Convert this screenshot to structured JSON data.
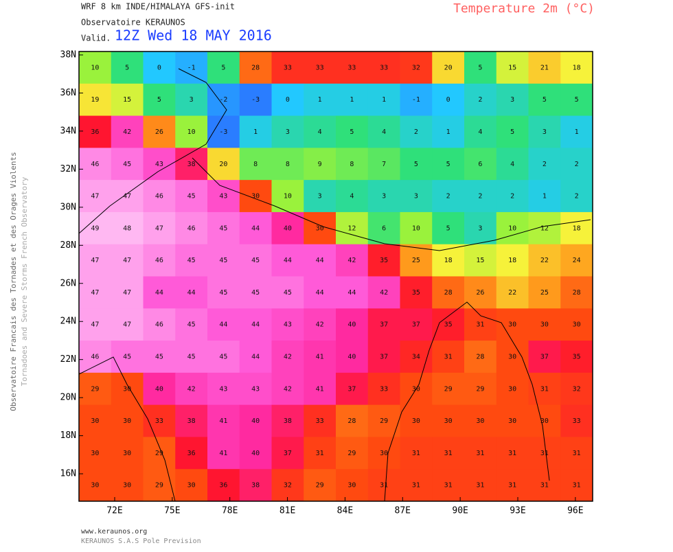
{
  "chart_data": {
    "type": "heatmap",
    "header": {
      "line1": "WRF 8 km INDE/HIMALAYA   GFS-init",
      "line2": "Observatoire KERAUNOS",
      "valid_label": "Valid.",
      "valid_time": "12Z Wed 18 MAY 2016"
    },
    "title": "Temperature 2m (°C)",
    "side_text": [
      "Observatoire Francais des Tornades et des Orages Violents",
      "Tornadoes and Severe Storms French Observatory"
    ],
    "footer": [
      "www.keraunos.org",
      "KERAUNOS S.A.S Pole Prevision"
    ],
    "xlim": [
      70.14,
      96.9
    ],
    "ylim": [
      14.56,
      38.18
    ],
    "xticks": [
      {
        "value": 72,
        "label": "72E"
      },
      {
        "value": 75,
        "label": "75E"
      },
      {
        "value": 78,
        "label": "78E"
      },
      {
        "value": 81,
        "label": "81E"
      },
      {
        "value": 84,
        "label": "84E"
      },
      {
        "value": 87,
        "label": "87E"
      },
      {
        "value": 90,
        "label": "90E"
      },
      {
        "value": 93,
        "label": "93E"
      },
      {
        "value": 96,
        "label": "96E"
      }
    ],
    "yticks": [
      {
        "value": 16,
        "label": "16N"
      },
      {
        "value": 18,
        "label": "18N"
      },
      {
        "value": 20,
        "label": "20N"
      },
      {
        "value": 22,
        "label": "22N"
      },
      {
        "value": 24,
        "label": "24N"
      },
      {
        "value": 26,
        "label": "26N"
      },
      {
        "value": 28,
        "label": "28N"
      },
      {
        "value": 30,
        "label": "30N"
      },
      {
        "value": 32,
        "label": "32N"
      },
      {
        "value": 34,
        "label": "34N"
      },
      {
        "value": 36,
        "label": "36N"
      },
      {
        "value": 38,
        "label": "38N"
      }
    ],
    "colorscale": [
      [
        -5,
        "#2f4bff"
      ],
      [
        0,
        "#22c8ff"
      ],
      [
        5,
        "#2fe07a"
      ],
      [
        10,
        "#9af23c"
      ],
      [
        18,
        "#f6f23a"
      ],
      [
        25,
        "#ff9a1c"
      ],
      [
        30,
        "#ff4a10"
      ],
      [
        36,
        "#ff1530"
      ],
      [
        40,
        "#ff2aa0"
      ],
      [
        44,
        "#ff5ad8"
      ],
      [
        48,
        "#ffb8f2"
      ]
    ],
    "values": [
      [
        10,
        5,
        0,
        -1,
        5,
        28,
        33,
        33,
        33,
        33,
        32,
        20,
        5,
        15,
        21,
        18
      ],
      [
        19,
        15,
        5,
        3,
        -2,
        -3,
        0,
        1,
        1,
        1,
        -1,
        0,
        2,
        3,
        5,
        5
      ],
      [
        36,
        42,
        26,
        10,
        -3,
        1,
        3,
        4,
        5,
        4,
        2,
        1,
        4,
        5,
        3,
        1
      ],
      [
        46,
        45,
        43,
        38,
        20,
        8,
        8,
        9,
        8,
        7,
        5,
        5,
        6,
        4,
        2,
        2
      ],
      [
        47,
        47,
        46,
        45,
        43,
        30,
        10,
        3,
        4,
        3,
        3,
        2,
        2,
        2,
        1,
        2
      ],
      [
        49,
        48,
        47,
        46,
        45,
        44,
        40,
        30,
        12,
        6,
        10,
        5,
        3,
        10,
        12,
        18
      ],
      [
        47,
        47,
        46,
        45,
        45,
        45,
        44,
        44,
        42,
        35,
        25,
        18,
        15,
        18,
        22,
        24
      ],
      [
        47,
        47,
        44,
        44,
        45,
        45,
        45,
        44,
        44,
        42,
        35,
        28,
        26,
        22,
        25,
        28
      ],
      [
        47,
        47,
        46,
        45,
        44,
        44,
        43,
        42,
        40,
        37,
        37,
        35,
        31,
        30,
        30,
        30
      ],
      [
        46,
        45,
        45,
        45,
        45,
        44,
        42,
        41,
        40,
        37,
        34,
        31,
        28,
        30,
        37,
        35
      ],
      [
        29,
        30,
        40,
        42,
        43,
        43,
        42,
        41,
        37,
        33,
        30,
        29,
        29,
        30,
        31,
        32
      ],
      [
        30,
        30,
        33,
        38,
        41,
        40,
        38,
        33,
        28,
        29,
        30,
        30,
        30,
        30,
        30,
        33
      ],
      [
        30,
        30,
        29,
        36,
        41,
        40,
        37,
        31,
        29,
        30,
        31,
        31,
        31,
        31,
        31,
        31
      ],
      [
        30,
        30,
        29,
        30,
        36,
        38,
        32,
        29,
        30,
        31,
        31,
        31,
        31,
        31,
        31,
        31
      ]
    ]
  }
}
